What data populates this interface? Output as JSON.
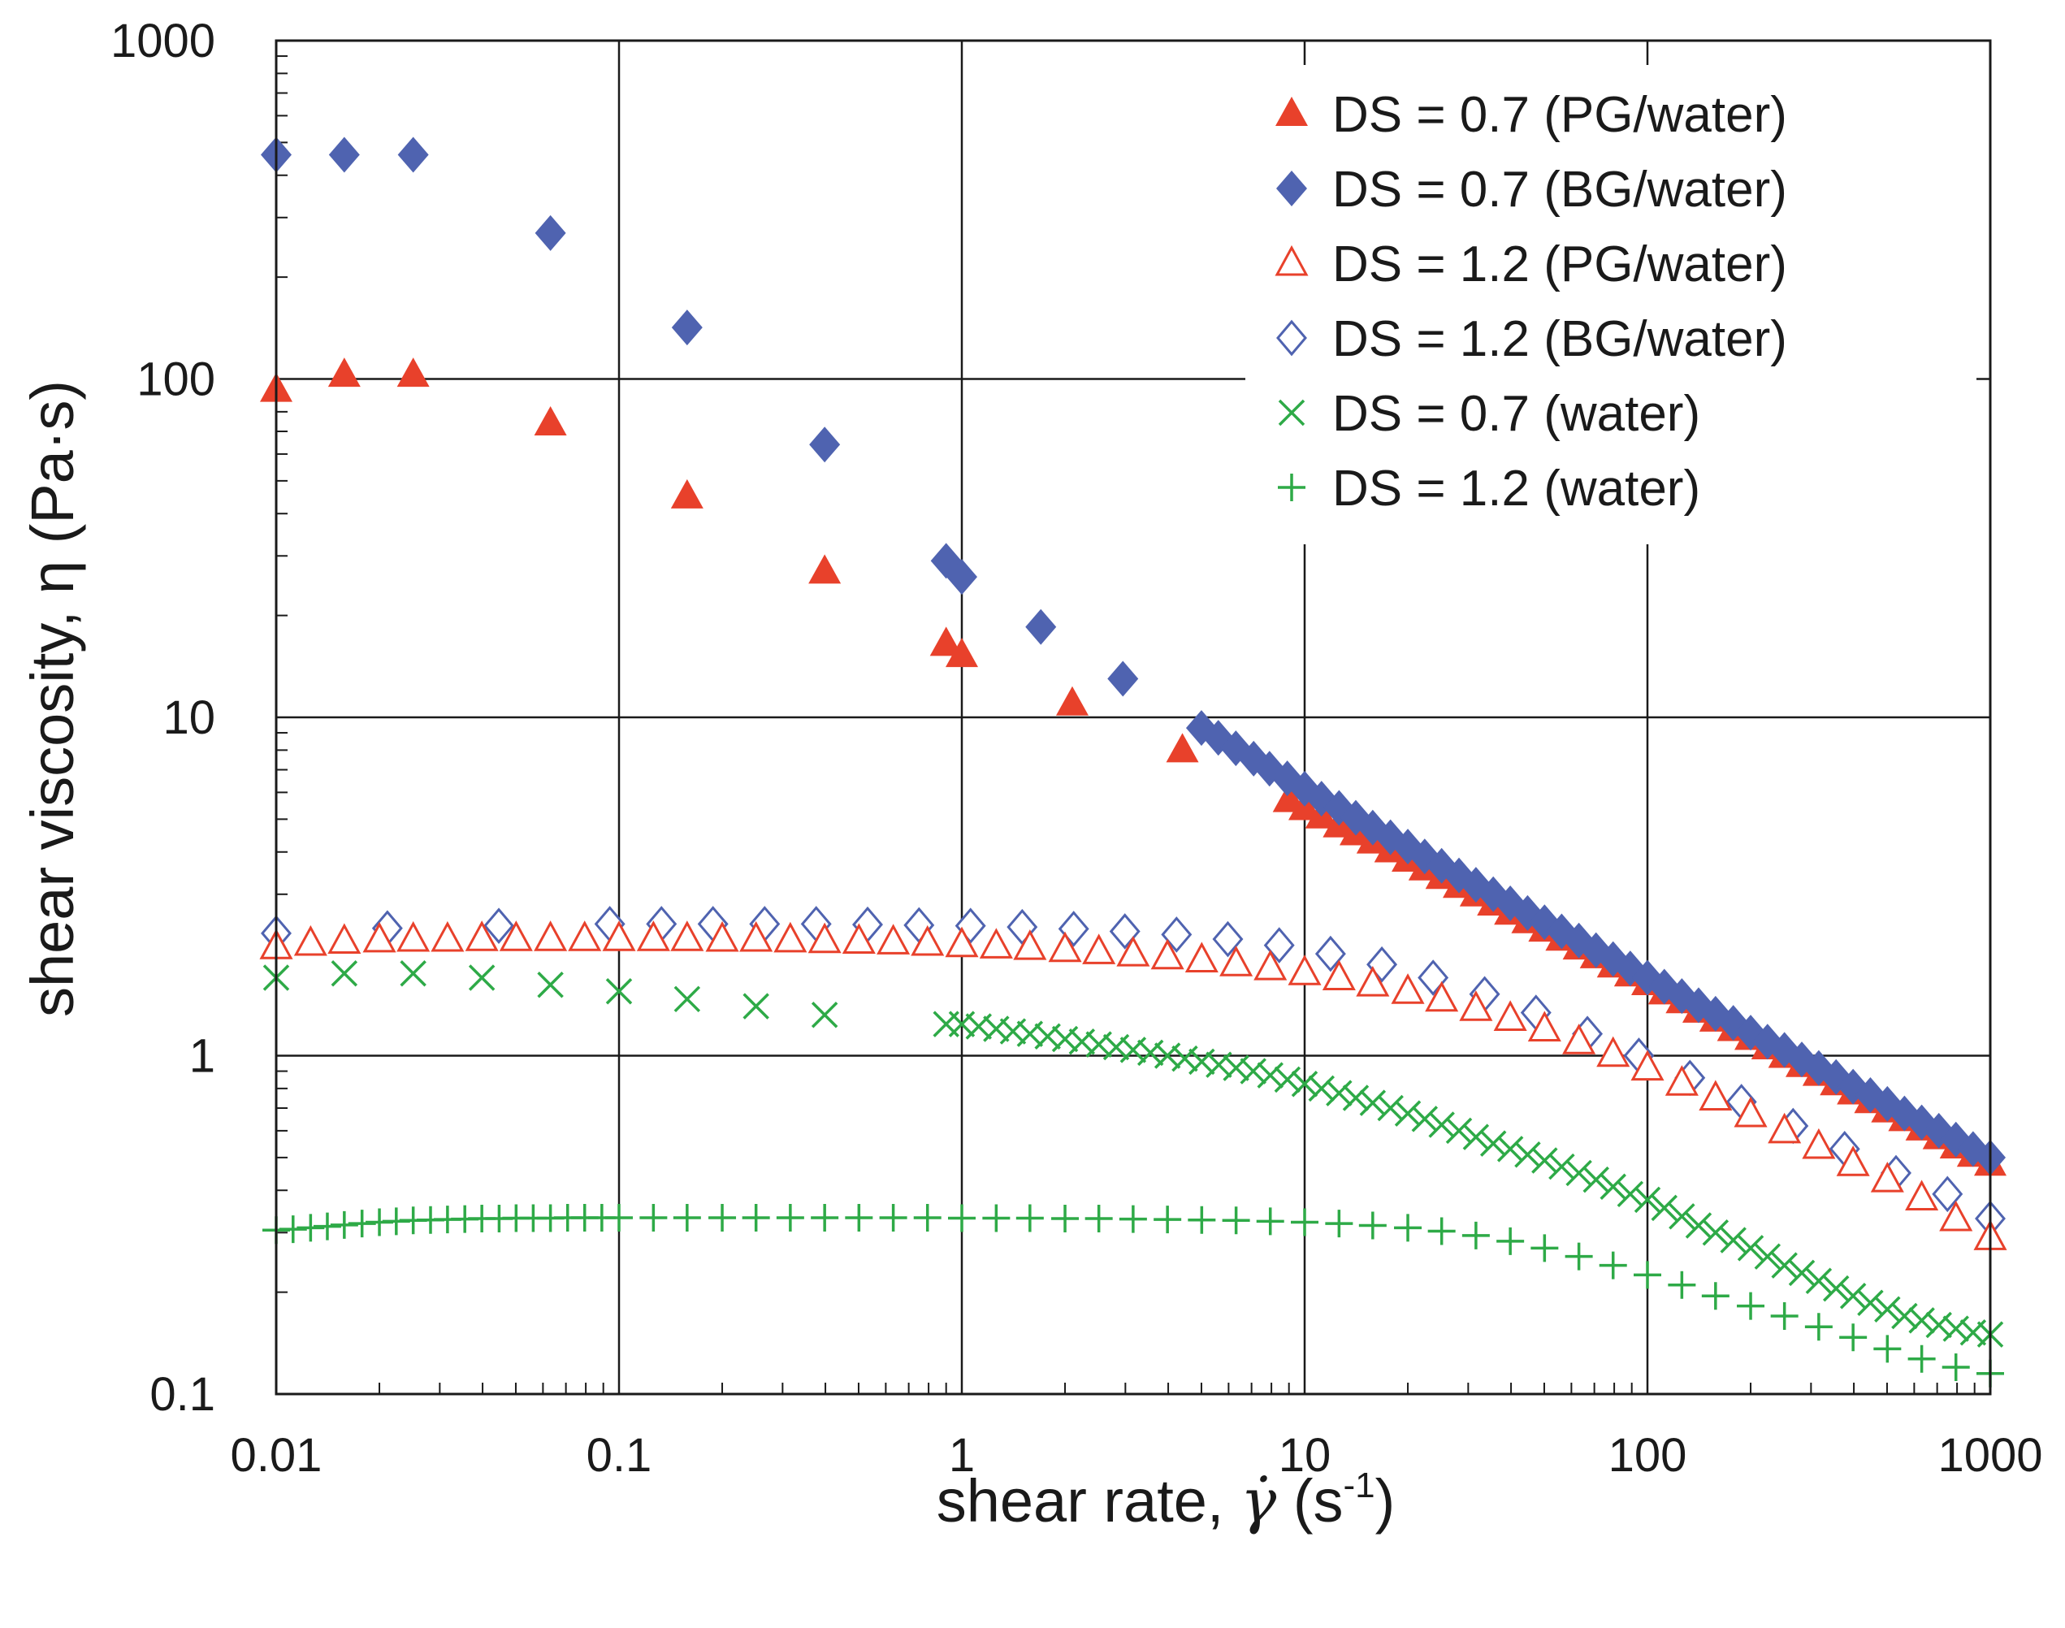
{
  "chart_data": {
    "type": "scatter",
    "x_scale": "log",
    "y_scale": "log",
    "xlabel_main": "shear rate, ",
    "xlabel_symbol": "γ̇",
    "xlabel_unit_open": " (s",
    "xlabel_unit_exp": "-1",
    "xlabel_unit_close": ")",
    "ylabel": "shear viscosity, η (Pa·s)",
    "xlim": [
      0.01,
      1000
    ],
    "ylim": [
      0.1,
      1000
    ],
    "x_ticks": [
      0.01,
      0.1,
      1,
      10,
      100,
      1000
    ],
    "x_tick_labels": [
      "0.01",
      "0.1",
      "1",
      "10",
      "100",
      "1000"
    ],
    "y_ticks": [
      0.1,
      1,
      10,
      100,
      1000
    ],
    "y_tick_labels": [
      "0.1",
      "1",
      "10",
      "100",
      "1000"
    ],
    "grid": true,
    "legend_position": "top-right",
    "colors": {
      "red": "#e8412b",
      "blue": "#4f63b0",
      "green": "#2eaa47",
      "axis": "#1a1a1a"
    },
    "series": [
      {
        "name": "DS = 0.7 (PG/water)",
        "marker": "triangle-filled",
        "color": "#e8412b",
        "x": [
          0.01,
          0.0158,
          0.0251,
          0.0631,
          0.158,
          0.398,
          0.9,
          1.0,
          2.1,
          4.4,
          9,
          10,
          11.2,
          12.6,
          14.1,
          15.8,
          17.8,
          20,
          22.4,
          25.1,
          28.2,
          31.6,
          35.5,
          39.8,
          44.7,
          50.1,
          56.2,
          63.1,
          70.8,
          79.4,
          89.1,
          100,
          112,
          126,
          141,
          158,
          178,
          200,
          224,
          251,
          282,
          316,
          355,
          398,
          447,
          501,
          562,
          631,
          708,
          794,
          891,
          1000
        ],
        "y": [
          93,
          103,
          103,
          74,
          45,
          27,
          16.5,
          15.3,
          11,
          8,
          5.7,
          5.4,
          5.1,
          4.8,
          4.55,
          4.3,
          4.05,
          3.8,
          3.58,
          3.38,
          3.18,
          3.0,
          2.82,
          2.65,
          2.5,
          2.36,
          2.22,
          2.09,
          1.97,
          1.85,
          1.74,
          1.64,
          1.54,
          1.45,
          1.36,
          1.28,
          1.2,
          1.13,
          1.06,
          1.0,
          0.94,
          0.885,
          0.83,
          0.78,
          0.735,
          0.69,
          0.65,
          0.61,
          0.575,
          0.54,
          0.51,
          0.48
        ]
      },
      {
        "name": "DS = 0.7 (BG/water)",
        "marker": "diamond-filled",
        "color": "#4f63b0",
        "x": [
          0.01,
          0.0158,
          0.0251,
          0.0631,
          0.158,
          0.398,
          0.9,
          1.0,
          1.7,
          2.95,
          5,
          5.6,
          6.3,
          7.1,
          7.9,
          8.9,
          10,
          11.2,
          12.6,
          14.1,
          15.8,
          17.8,
          20,
          22.4,
          25.1,
          28.2,
          31.6,
          35.5,
          39.8,
          44.7,
          50.1,
          56.2,
          63.1,
          70.8,
          79.4,
          89.1,
          100,
          112,
          126,
          141,
          158,
          178,
          200,
          224,
          251,
          282,
          316,
          355,
          398,
          447,
          501,
          562,
          631,
          708,
          794,
          891,
          1000
        ],
        "y": [
          460,
          460,
          460,
          270,
          142,
          64,
          29,
          26,
          18.5,
          13,
          9.3,
          8.7,
          8.1,
          7.55,
          7.05,
          6.6,
          6.15,
          5.75,
          5.4,
          5.05,
          4.72,
          4.42,
          4.15,
          3.88,
          3.64,
          3.41,
          3.2,
          3.0,
          2.82,
          2.64,
          2.48,
          2.33,
          2.19,
          2.05,
          1.93,
          1.81,
          1.7,
          1.6,
          1.5,
          1.41,
          1.33,
          1.25,
          1.17,
          1.1,
          1.04,
          0.975,
          0.92,
          0.865,
          0.81,
          0.765,
          0.72,
          0.675,
          0.635,
          0.6,
          0.565,
          0.53,
          0.5
        ]
      },
      {
        "name": "DS = 1.2 (PG/water)",
        "marker": "triangle-open",
        "color": "#e8412b",
        "x": [
          0.01,
          0.0126,
          0.0158,
          0.02,
          0.0251,
          0.0316,
          0.0398,
          0.0501,
          0.0631,
          0.0794,
          0.1,
          0.126,
          0.158,
          0.2,
          0.251,
          0.316,
          0.398,
          0.501,
          0.631,
          0.794,
          1.0,
          1.26,
          1.58,
          2.0,
          2.51,
          3.16,
          3.98,
          5.01,
          6.31,
          7.94,
          10,
          12.6,
          15.8,
          20,
          25.1,
          31.6,
          39.8,
          50.1,
          63.1,
          79.4,
          100,
          126,
          158,
          200,
          251,
          316,
          398,
          501,
          631,
          794,
          1000
        ],
        "y": [
          2.1,
          2.15,
          2.18,
          2.2,
          2.21,
          2.21,
          2.22,
          2.22,
          2.22,
          2.22,
          2.22,
          2.22,
          2.22,
          2.21,
          2.21,
          2.2,
          2.19,
          2.18,
          2.17,
          2.15,
          2.13,
          2.11,
          2.09,
          2.06,
          2.03,
          2.0,
          1.96,
          1.92,
          1.87,
          1.82,
          1.76,
          1.7,
          1.63,
          1.55,
          1.47,
          1.38,
          1.29,
          1.2,
          1.1,
          1.01,
          0.92,
          0.83,
          0.75,
          0.67,
          0.6,
          0.54,
          0.48,
          0.43,
          0.38,
          0.33,
          0.29
        ]
      },
      {
        "name": "DS = 1.2 (BG/water)",
        "marker": "diamond-open",
        "color": "#4f63b0",
        "x": [
          0.01,
          0.0211,
          0.0446,
          0.094,
          0.133,
          0.188,
          0.266,
          0.376,
          0.531,
          0.75,
          1.06,
          1.5,
          2.12,
          2.99,
          4.23,
          5.97,
          8.43,
          11.9,
          16.8,
          23.7,
          33.5,
          47.3,
          66.8,
          94.4,
          133,
          188,
          266,
          376,
          531,
          750,
          1000
        ],
        "y": [
          2.3,
          2.38,
          2.42,
          2.45,
          2.45,
          2.45,
          2.45,
          2.45,
          2.44,
          2.43,
          2.42,
          2.4,
          2.37,
          2.33,
          2.28,
          2.21,
          2.12,
          2.0,
          1.86,
          1.7,
          1.52,
          1.34,
          1.16,
          1.0,
          0.86,
          0.73,
          0.62,
          0.53,
          0.45,
          0.39,
          0.33
        ]
      },
      {
        "name": "DS = 0.7 (water)",
        "marker": "x",
        "color": "#2eaa47",
        "x": [
          0.01,
          0.0158,
          0.0251,
          0.0398,
          0.0631,
          0.1,
          0.158,
          0.251,
          0.398,
          0.9,
          1.0,
          1.12,
          1.26,
          1.41,
          1.58,
          1.78,
          2.0,
          2.24,
          2.51,
          2.82,
          3.16,
          3.55,
          3.98,
          4.47,
          5.01,
          5.62,
          6.31,
          7.08,
          7.94,
          8.91,
          10,
          11.2,
          12.6,
          14.1,
          15.8,
          17.8,
          20,
          22.4,
          25.1,
          28.2,
          31.6,
          35.5,
          39.8,
          44.7,
          50.1,
          56.2,
          63.1,
          70.8,
          79.4,
          89.1,
          100,
          112,
          126,
          141,
          158,
          178,
          200,
          224,
          251,
          282,
          316,
          355,
          398,
          447,
          501,
          562,
          631,
          708,
          794,
          891,
          1000
        ],
        "y": [
          1.7,
          1.75,
          1.75,
          1.7,
          1.62,
          1.55,
          1.47,
          1.4,
          1.32,
          1.24,
          1.24,
          1.22,
          1.2,
          1.18,
          1.16,
          1.14,
          1.12,
          1.1,
          1.08,
          1.06,
          1.04,
          1.02,
          1.0,
          0.98,
          0.96,
          0.94,
          0.92,
          0.9,
          0.875,
          0.85,
          0.825,
          0.8,
          0.775,
          0.75,
          0.725,
          0.7,
          0.675,
          0.65,
          0.625,
          0.6,
          0.575,
          0.55,
          0.53,
          0.51,
          0.49,
          0.47,
          0.45,
          0.43,
          0.41,
          0.39,
          0.375,
          0.355,
          0.335,
          0.315,
          0.3,
          0.285,
          0.27,
          0.255,
          0.24,
          0.228,
          0.216,
          0.205,
          0.195,
          0.186,
          0.178,
          0.17,
          0.165,
          0.16,
          0.156,
          0.152,
          0.15
        ]
      },
      {
        "name": "DS = 1.2 (water)",
        "marker": "plus",
        "color": "#2eaa47",
        "x": [
          0.01,
          0.0112,
          0.0126,
          0.0141,
          0.0158,
          0.0178,
          0.02,
          0.0224,
          0.0251,
          0.0282,
          0.0316,
          0.0355,
          0.0398,
          0.0447,
          0.0501,
          0.0562,
          0.0631,
          0.0708,
          0.0794,
          0.0891,
          0.1,
          0.126,
          0.158,
          0.2,
          0.251,
          0.316,
          0.398,
          0.501,
          0.631,
          0.794,
          1.0,
          1.26,
          1.58,
          2.0,
          2.51,
          3.16,
          3.98,
          5.01,
          6.31,
          7.94,
          10,
          12.6,
          15.8,
          20,
          25.1,
          31.6,
          39.8,
          50.1,
          63.1,
          79.4,
          100,
          126,
          158,
          200,
          251,
          316,
          398,
          501,
          631,
          794,
          1000
        ],
        "y": [
          0.305,
          0.307,
          0.31,
          0.313,
          0.316,
          0.319,
          0.322,
          0.324,
          0.326,
          0.327,
          0.328,
          0.329,
          0.33,
          0.33,
          0.331,
          0.331,
          0.331,
          0.332,
          0.332,
          0.332,
          0.332,
          0.332,
          0.332,
          0.332,
          0.332,
          0.332,
          0.332,
          0.332,
          0.332,
          0.332,
          0.331,
          0.331,
          0.331,
          0.33,
          0.33,
          0.329,
          0.328,
          0.327,
          0.326,
          0.324,
          0.322,
          0.319,
          0.315,
          0.31,
          0.303,
          0.294,
          0.283,
          0.27,
          0.255,
          0.24,
          0.225,
          0.21,
          0.195,
          0.182,
          0.17,
          0.158,
          0.147,
          0.136,
          0.127,
          0.12,
          0.115
        ]
      }
    ]
  }
}
